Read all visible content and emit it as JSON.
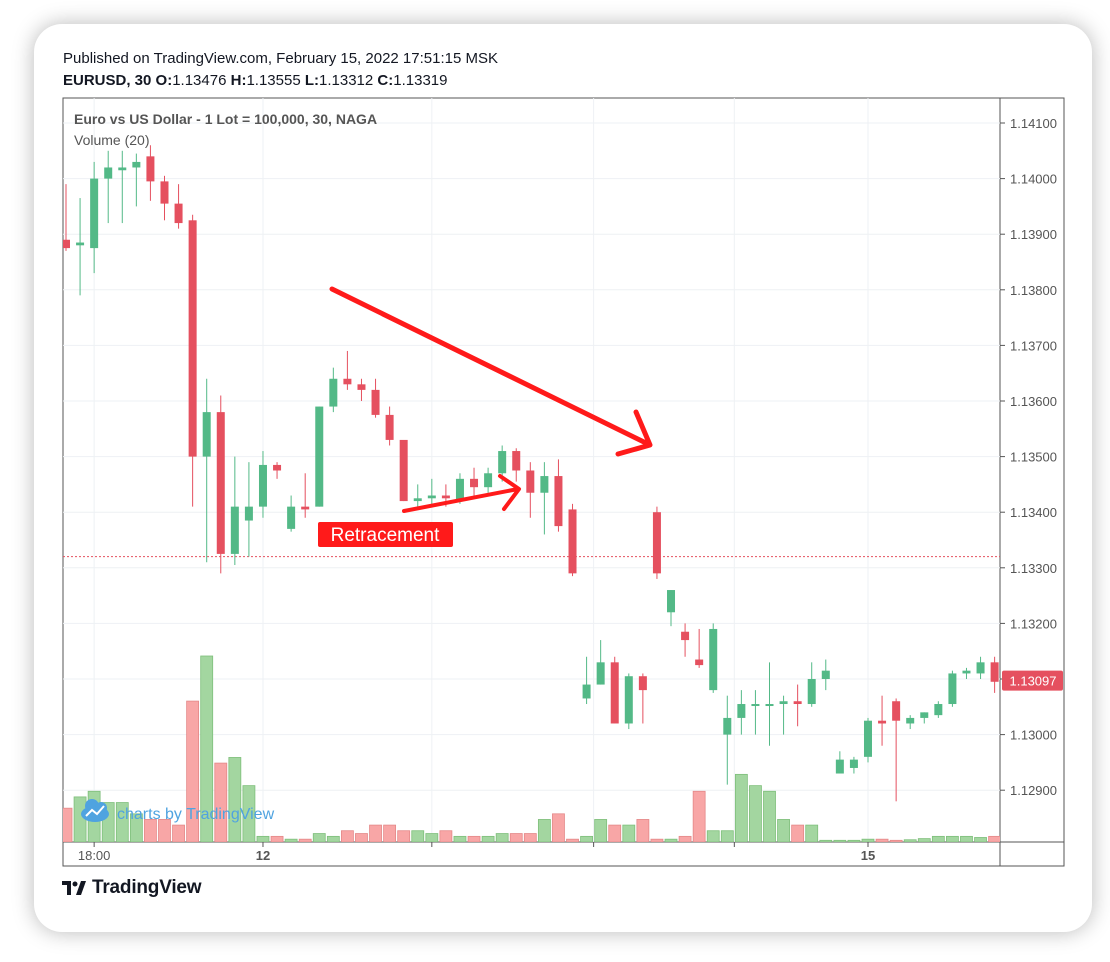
{
  "header": {
    "published": "Published on TradingView.com, February 15, 2022 17:51:15 MSK",
    "symbol": "EURUSD, 30",
    "o_label": "O:",
    "o_value": "1.13476",
    "h_label": "H:",
    "h_value": "1.13555",
    "l_label": "L:",
    "l_value": "1.13312",
    "c_label": "C:",
    "c_value": "1.13319"
  },
  "legend": {
    "instrument": "Euro vs US Dollar - 1 Lot = 100,000, 30, NAGA",
    "volume": "Volume (20)"
  },
  "watermark": "charts by TradingView",
  "footer": {
    "brand": "TradingView"
  },
  "colors": {
    "up": "#53b987",
    "down": "#e5505f",
    "volume_up": "#a3d6a0",
    "volume_down": "#f8a6a6",
    "annotation": "#ff1a1a",
    "price_label": "#e5505f"
  },
  "chart_data": {
    "type": "candlestick",
    "y_ticks": [
      "1.14100",
      "1.14000",
      "1.13900",
      "1.13800",
      "1.13700",
      "1.13600",
      "1.13500",
      "1.13400",
      "1.13300",
      "1.13200",
      "1.13100",
      "1.13000",
      "1.12900"
    ],
    "ylim": [
      1.1281,
      1.14225
    ],
    "x_tick_labels": [
      {
        "index": 2,
        "label": "18:00"
      },
      {
        "index": 14,
        "label": "12"
      },
      {
        "index": 57,
        "label": "15"
      }
    ],
    "last_price": "1.13097",
    "reference_line": 1.1332,
    "annotation_label": "Retracement",
    "candles": [
      {
        "o": 1.1389,
        "h": 1.1399,
        "l": 1.1387,
        "c": 1.13875,
        "v": 6
      },
      {
        "o": 1.1388,
        "h": 1.13965,
        "l": 1.1379,
        "c": 1.13885,
        "v": 8
      },
      {
        "o": 1.13875,
        "h": 1.1403,
        "l": 1.1383,
        "c": 1.14,
        "v": 9
      },
      {
        "o": 1.14,
        "h": 1.1405,
        "l": 1.1392,
        "c": 1.1402,
        "v": 7
      },
      {
        "o": 1.14015,
        "h": 1.1405,
        "l": 1.1392,
        "c": 1.1402,
        "v": 7
      },
      {
        "o": 1.1402,
        "h": 1.14045,
        "l": 1.1395,
        "c": 1.1403,
        "v": 5
      },
      {
        "o": 1.1404,
        "h": 1.1406,
        "l": 1.1396,
        "c": 1.13995,
        "v": 4
      },
      {
        "o": 1.13995,
        "h": 1.14005,
        "l": 1.13925,
        "c": 1.13955,
        "v": 4
      },
      {
        "o": 1.13955,
        "h": 1.1399,
        "l": 1.1391,
        "c": 1.1392,
        "v": 3
      },
      {
        "o": 1.13925,
        "h": 1.13935,
        "l": 1.1341,
        "c": 1.135,
        "v": 25
      },
      {
        "o": 1.135,
        "h": 1.1364,
        "l": 1.1331,
        "c": 1.1358,
        "v": 33
      },
      {
        "o": 1.1358,
        "h": 1.1361,
        "l": 1.1329,
        "c": 1.13325,
        "v": 14
      },
      {
        "o": 1.13325,
        "h": 1.135,
        "l": 1.13305,
        "c": 1.1341,
        "v": 15
      },
      {
        "o": 1.13385,
        "h": 1.1349,
        "l": 1.1332,
        "c": 1.1341,
        "v": 10
      },
      {
        "o": 1.1341,
        "h": 1.1351,
        "l": 1.1339,
        "c": 1.13485,
        "v": 1
      },
      {
        "o": 1.13485,
        "h": 1.1349,
        "l": 1.1346,
        "c": 1.13475,
        "v": 1
      },
      {
        "o": 1.1337,
        "h": 1.1343,
        "l": 1.13365,
        "c": 1.1341,
        "v": 0.5
      },
      {
        "o": 1.1341,
        "h": 1.1347,
        "l": 1.1339,
        "c": 1.13405,
        "v": 0.5
      },
      {
        "o": 1.1341,
        "h": 1.1359,
        "l": 1.1341,
        "c": 1.1359,
        "v": 1.5
      },
      {
        "o": 1.1359,
        "h": 1.1366,
        "l": 1.1358,
        "c": 1.1364,
        "v": 1
      },
      {
        "o": 1.1364,
        "h": 1.1369,
        "l": 1.1362,
        "c": 1.1363,
        "v": 2
      },
      {
        "o": 1.1363,
        "h": 1.1364,
        "l": 1.136,
        "c": 1.1362,
        "v": 1.5
      },
      {
        "o": 1.1362,
        "h": 1.1364,
        "l": 1.1357,
        "c": 1.13575,
        "v": 3
      },
      {
        "o": 1.13575,
        "h": 1.1359,
        "l": 1.1352,
        "c": 1.1353,
        "v": 3
      },
      {
        "o": 1.1353,
        "h": 1.1352,
        "l": 1.1342,
        "c": 1.1342,
        "v": 2
      },
      {
        "o": 1.1342,
        "h": 1.1345,
        "l": 1.1341,
        "c": 1.13425,
        "v": 2
      },
      {
        "o": 1.13425,
        "h": 1.1346,
        "l": 1.1341,
        "c": 1.1343,
        "v": 1.5
      },
      {
        "o": 1.1343,
        "h": 1.1345,
        "l": 1.1341,
        "c": 1.13425,
        "v": 2
      },
      {
        "o": 1.1342,
        "h": 1.1347,
        "l": 1.13415,
        "c": 1.1346,
        "v": 1
      },
      {
        "o": 1.1346,
        "h": 1.1348,
        "l": 1.1343,
        "c": 1.13445,
        "v": 1
      },
      {
        "o": 1.13445,
        "h": 1.1348,
        "l": 1.13435,
        "c": 1.1347,
        "v": 1
      },
      {
        "o": 1.1347,
        "h": 1.1352,
        "l": 1.13455,
        "c": 1.1351,
        "v": 1.5
      },
      {
        "o": 1.1351,
        "h": 1.13515,
        "l": 1.13455,
        "c": 1.13475,
        "v": 1.5
      },
      {
        "o": 1.13475,
        "h": 1.1349,
        "l": 1.1339,
        "c": 1.13435,
        "v": 1.5
      },
      {
        "o": 1.13435,
        "h": 1.1349,
        "l": 1.1336,
        "c": 1.13465,
        "v": 4
      },
      {
        "o": 1.13465,
        "h": 1.13495,
        "l": 1.13365,
        "c": 1.13375,
        "v": 5
      },
      {
        "o": 1.13405,
        "h": 1.13415,
        "l": 1.13285,
        "c": 1.1329,
        "v": 0.5
      },
      {
        "o": 1.13065,
        "h": 1.1314,
        "l": 1.13055,
        "c": 1.1309,
        "v": 1
      },
      {
        "o": 1.1309,
        "h": 1.1317,
        "l": 1.1309,
        "c": 1.1313,
        "v": 4
      },
      {
        "o": 1.1313,
        "h": 1.1314,
        "l": 1.1302,
        "c": 1.1302,
        "v": 3
      },
      {
        "o": 1.1302,
        "h": 1.1311,
        "l": 1.1301,
        "c": 1.13105,
        "v": 3
      },
      {
        "o": 1.13105,
        "h": 1.1311,
        "l": 1.1302,
        "c": 1.1308,
        "v": 4
      },
      {
        "o": 1.134,
        "h": 1.1341,
        "l": 1.1328,
        "c": 1.1329,
        "v": 0.5
      },
      {
        "o": 1.1322,
        "h": 1.1326,
        "l": 1.13195,
        "c": 1.1326,
        "v": 0.5
      },
      {
        "o": 1.13185,
        "h": 1.132,
        "l": 1.1314,
        "c": 1.1317,
        "v": 1
      },
      {
        "o": 1.13135,
        "h": 1.1319,
        "l": 1.1312,
        "c": 1.13125,
        "v": 9
      },
      {
        "o": 1.1308,
        "h": 1.132,
        "l": 1.13075,
        "c": 1.1319,
        "v": 2
      },
      {
        "o": 1.13,
        "h": 1.1307,
        "l": 1.1291,
        "c": 1.1303,
        "v": 2
      },
      {
        "o": 1.1303,
        "h": 1.1308,
        "l": 1.13,
        "c": 1.13055,
        "v": 12
      },
      {
        "o": 1.13055,
        "h": 1.1308,
        "l": 1.13,
        "c": 1.13055,
        "v": 10
      },
      {
        "o": 1.13055,
        "h": 1.1313,
        "l": 1.1298,
        "c": 1.13055,
        "v": 9
      },
      {
        "o": 1.13055,
        "h": 1.1307,
        "l": 1.13,
        "c": 1.1306,
        "v": 4
      },
      {
        "o": 1.1306,
        "h": 1.1309,
        "l": 1.13015,
        "c": 1.13055,
        "v": 3
      },
      {
        "o": 1.13055,
        "h": 1.1313,
        "l": 1.1305,
        "c": 1.131,
        "v": 3
      },
      {
        "o": 1.131,
        "h": 1.13135,
        "l": 1.1308,
        "c": 1.13115,
        "v": 0.3
      },
      {
        "o": 1.1293,
        "h": 1.1297,
        "l": 1.1293,
        "c": 1.12955,
        "v": 0.3
      },
      {
        "o": 1.1294,
        "h": 1.1296,
        "l": 1.1293,
        "c": 1.12955,
        "v": 0.3
      },
      {
        "o": 1.1296,
        "h": 1.1303,
        "l": 1.1295,
        "c": 1.13025,
        "v": 0.5
      },
      {
        "o": 1.13025,
        "h": 1.1307,
        "l": 1.1298,
        "c": 1.1302,
        "v": 0.5
      },
      {
        "o": 1.1306,
        "h": 1.13065,
        "l": 1.1288,
        "c": 1.13025,
        "v": 0.3
      },
      {
        "o": 1.1302,
        "h": 1.13035,
        "l": 1.1301,
        "c": 1.1303,
        "v": 0.4
      },
      {
        "o": 1.1303,
        "h": 1.1304,
        "l": 1.1302,
        "c": 1.1304,
        "v": 0.6
      },
      {
        "o": 1.13035,
        "h": 1.1306,
        "l": 1.1303,
        "c": 1.13055,
        "v": 1
      },
      {
        "o": 1.13055,
        "h": 1.13115,
        "l": 1.1305,
        "c": 1.1311,
        "v": 1
      },
      {
        "o": 1.1311,
        "h": 1.1312,
        "l": 1.131,
        "c": 1.13115,
        "v": 1
      },
      {
        "o": 1.1311,
        "h": 1.1314,
        "l": 1.131,
        "c": 1.1313,
        "v": 0.8
      },
      {
        "o": 1.1313,
        "h": 1.1314,
        "l": 1.13075,
        "c": 1.13095,
        "v": 1
      }
    ]
  }
}
